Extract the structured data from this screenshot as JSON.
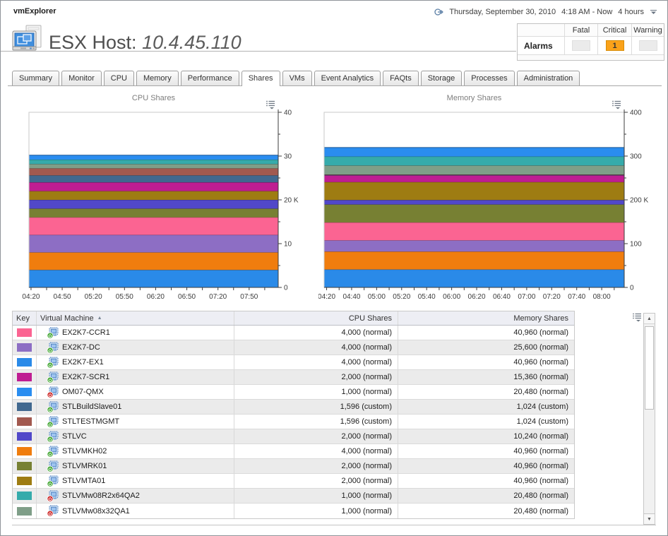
{
  "window": {
    "app_title": "vmExplorer",
    "timeline_date": "Thursday, September 30, 2010",
    "timeline_range": "4:18 AM - Now",
    "timeline_duration": "4 hours"
  },
  "header": {
    "title_prefix": "ESX Host:",
    "host": "10.4.45.110"
  },
  "alarms": {
    "label": "Alarms",
    "columns": [
      "Fatal",
      "Critical",
      "Warning"
    ],
    "fatal_count": "",
    "critical_count": "1",
    "warning_count": ""
  },
  "tabs": {
    "active": "Shares",
    "items": [
      "Summary",
      "Monitor",
      "CPU",
      "Memory",
      "Performance",
      "Shares",
      "VMs",
      "Event Analytics",
      "FAQts",
      "Storage",
      "Processes",
      "Administration"
    ]
  },
  "chart_data": [
    {
      "type": "area",
      "stacked": true,
      "title": "CPU Shares",
      "x_start": "04:18",
      "x_end": "08:18",
      "x_labels": [
        "04:20",
        "04:50",
        "05:20",
        "05:50",
        "06:20",
        "06:50",
        "07:20",
        "07:50"
      ],
      "x_minor_step_min": 15,
      "y_max": 40,
      "y_unit": "thousands of shares",
      "y_ticks": [
        {
          "v": 0,
          "label": "0"
        },
        {
          "v": 10,
          "label": "10"
        },
        {
          "v": 20,
          "label": "20 K"
        },
        {
          "v": 30,
          "label": "30"
        },
        {
          "v": 40,
          "label": "40"
        }
      ],
      "y_minor": [
        5,
        15,
        25,
        35
      ],
      "legend_position": "none",
      "grid": false,
      "series_note": "values constant across the 4-hour window; stacked bottom to top; total 30,192",
      "series": [
        {
          "name": "EX2K7-EX1",
          "color": "#2a8ae8",
          "value": 4000
        },
        {
          "name": "STLVMKH02",
          "color": "#f07d0e",
          "value": 4000
        },
        {
          "name": "EX2K7-DC",
          "color": "#8d6ec4",
          "value": 4000
        },
        {
          "name": "EX2K7-CCR1",
          "color": "#fb6492",
          "value": 4000
        },
        {
          "name": "STLVMRK01",
          "color": "#778033",
          "value": 2000
        },
        {
          "name": "STLVC",
          "color": "#5148c9",
          "value": 2000
        },
        {
          "name": "STLVMTA01",
          "color": "#9e7c12",
          "value": 2000
        },
        {
          "name": "EX2K7-SCR1",
          "color": "#bf1d92",
          "value": 2000
        },
        {
          "name": "STLBuildSlave01",
          "color": "#41688f",
          "value": 1596
        },
        {
          "name": "STLTESTMGMT",
          "color": "#a2594f",
          "value": 1596
        },
        {
          "name": "STLVMw08x32QA1",
          "color": "#7f9e88",
          "value": 1000
        },
        {
          "name": "STLVMw08R2x64QA2",
          "color": "#35abab",
          "value": 1000
        },
        {
          "name": "OM07-QMX",
          "color": "#2a8df0",
          "value": 1000
        }
      ]
    },
    {
      "type": "area",
      "stacked": true,
      "title": "Memory Shares",
      "x_start": "04:18",
      "x_end": "08:18",
      "x_labels": [
        "04:20",
        "04:40",
        "05:00",
        "05:20",
        "05:40",
        "06:00",
        "06:20",
        "06:40",
        "07:00",
        "07:20",
        "07:40",
        "08:00"
      ],
      "x_minor_step_min": 10,
      "y_max": 400,
      "y_unit": "thousands of shares",
      "y_ticks": [
        {
          "v": 0,
          "label": "0"
        },
        {
          "v": 100,
          "label": "100"
        },
        {
          "v": 200,
          "label": "200 K"
        },
        {
          "v": 300,
          "label": "300"
        },
        {
          "v": 400,
          "label": "400"
        }
      ],
      "y_minor": [
        50,
        150,
        250,
        350
      ],
      "legend_position": "none",
      "grid": false,
      "series_note": "values constant across the 4-hour window; stacked bottom to top; total 319,488",
      "series": [
        {
          "name": "EX2K7-EX1",
          "color": "#2a8ae8",
          "value": 40960
        },
        {
          "name": "STLVMKH02",
          "color": "#f07d0e",
          "value": 40960
        },
        {
          "name": "EX2K7-DC",
          "color": "#8d6ec4",
          "value": 25600
        },
        {
          "name": "EX2K7-CCR1",
          "color": "#fb6492",
          "value": 40960
        },
        {
          "name": "STLVMRK01",
          "color": "#778033",
          "value": 40960
        },
        {
          "name": "STLVC",
          "color": "#5148c9",
          "value": 10240
        },
        {
          "name": "STLVMTA01",
          "color": "#9e7c12",
          "value": 40960
        },
        {
          "name": "EX2K7-SCR1",
          "color": "#bf1d92",
          "value": 15360
        },
        {
          "name": "STLBuildSlave01",
          "color": "#41688f",
          "value": 1024
        },
        {
          "name": "STLTESTMGMT",
          "color": "#a2594f",
          "value": 1024
        },
        {
          "name": "STLVMw08x32QA1",
          "color": "#7f9e88",
          "value": 20480
        },
        {
          "name": "STLVMw08R2x64QA2",
          "color": "#35abab",
          "value": 20480
        },
        {
          "name": "OM07-QMX",
          "color": "#2a8df0",
          "value": 20480
        }
      ]
    }
  ],
  "table": {
    "columns": [
      "Key",
      "Virtual Machine",
      "CPU Shares",
      "Memory Shares"
    ],
    "sort_column": "Virtual Machine",
    "sort_direction": "ascending",
    "rows": [
      {
        "name": "EX2K7-CCR1",
        "color": "#fb6492",
        "state": "running",
        "cpu_shares": "4,000 (normal)",
        "memory_shares": "40,960 (normal)"
      },
      {
        "name": "EX2K7-DC",
        "color": "#8d6ec4",
        "state": "running",
        "cpu_shares": "4,000 (normal)",
        "memory_shares": "25,600 (normal)"
      },
      {
        "name": "EX2K7-EX1",
        "color": "#2a8ae8",
        "state": "running",
        "cpu_shares": "4,000 (normal)",
        "memory_shares": "40,960 (normal)"
      },
      {
        "name": "EX2K7-SCR1",
        "color": "#bf1d92",
        "state": "running",
        "cpu_shares": "2,000 (normal)",
        "memory_shares": "15,360 (normal)"
      },
      {
        "name": "OM07-QMX",
        "color": "#2a8df0",
        "state": "stopped",
        "cpu_shares": "1,000 (normal)",
        "memory_shares": "20,480 (normal)"
      },
      {
        "name": "STLBuildSlave01",
        "color": "#41688f",
        "state": "running",
        "cpu_shares": "1,596 (custom)",
        "memory_shares": "1,024 (custom)"
      },
      {
        "name": "STLTESTMGMT",
        "color": "#a2594f",
        "state": "running",
        "cpu_shares": "1,596 (custom)",
        "memory_shares": "1,024 (custom)"
      },
      {
        "name": "STLVC",
        "color": "#5148c9",
        "state": "running",
        "cpu_shares": "2,000 (normal)",
        "memory_shares": "10,240 (normal)"
      },
      {
        "name": "STLVMKH02",
        "color": "#f07d0e",
        "state": "running",
        "cpu_shares": "4,000 (normal)",
        "memory_shares": "40,960 (normal)"
      },
      {
        "name": "STLVMRK01",
        "color": "#778033",
        "state": "running",
        "cpu_shares": "2,000 (normal)",
        "memory_shares": "40,960 (normal)"
      },
      {
        "name": "STLVMTA01",
        "color": "#9e7c12",
        "state": "running",
        "cpu_shares": "2,000 (normal)",
        "memory_shares": "40,960 (normal)"
      },
      {
        "name": "STLVMw08R2x64QA2",
        "color": "#35abab",
        "state": "stopped",
        "cpu_shares": "1,000 (normal)",
        "memory_shares": "20,480 (normal)"
      },
      {
        "name": "STLVMw08x32QA1",
        "color": "#7f9e88",
        "state": "stopped",
        "cpu_shares": "1,000 (normal)",
        "memory_shares": "20,480 (normal)"
      }
    ]
  }
}
